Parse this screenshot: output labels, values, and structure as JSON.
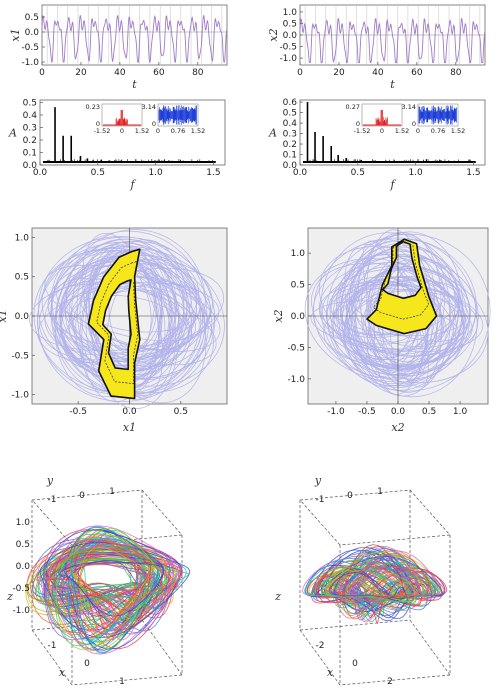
{
  "chart_data": [
    {
      "id": "ts1",
      "type": "line",
      "xlabel": "t",
      "ylabel": "x1",
      "xlim": [
        0,
        95
      ],
      "ylim": [
        -1.1,
        0.9
      ],
      "xticks": [
        "0",
        "20",
        "40",
        "60",
        "80"
      ],
      "yticks": [
        "-1.0",
        "-0.5",
        "0.0",
        "0.5"
      ],
      "series": [
        {
          "color": "#a07cc8",
          "oscillations": 15
        }
      ]
    },
    {
      "id": "ts2",
      "type": "line",
      "xlabel": "t",
      "ylabel": "x2",
      "xlim": [
        0,
        95
      ],
      "ylim": [
        -1.3,
        1.3
      ],
      "xticks": [
        "0",
        "20",
        "40",
        "60",
        "80"
      ],
      "yticks": [
        "-1.0",
        "-0.5",
        "0.0",
        "0.5",
        "1.0"
      ],
      "series": [
        {
          "color": "#a07cc8",
          "oscillations": 15
        }
      ]
    },
    {
      "id": "spec1",
      "type": "bar",
      "xlabel": "f",
      "ylabel": "A",
      "xlim": [
        0,
        1.6
      ],
      "ylim": [
        0,
        0.52
      ],
      "xticks": [
        "0.0",
        "0.5",
        "1.0",
        "1.5"
      ],
      "yticks": [
        "0.0",
        "0.1",
        "0.2",
        "0.3",
        "0.4",
        "0.5"
      ],
      "peaks": [
        [
          0.13,
          0.46
        ],
        [
          0.2,
          0.22
        ],
        [
          0.27,
          0.22
        ],
        [
          0.35,
          0.05
        ],
        [
          0.41,
          0.03
        ],
        [
          0.53,
          0.02
        ],
        [
          0.65,
          0.01
        ]
      ],
      "insets": [
        {
          "color": "#e02020",
          "ymax": "0.23",
          "ticks": [
            "-1.52",
            "0",
            "1.52"
          ]
        },
        {
          "color": "#1f3fd8",
          "ymax": "3.14",
          "ticks": [
            "0",
            "0.76",
            "1.52"
          ]
        }
      ]
    },
    {
      "id": "spec2",
      "type": "bar",
      "xlabel": "f",
      "ylabel": "A",
      "xlim": [
        0,
        1.6
      ],
      "ylim": [
        0,
        0.62
      ],
      "xticks": [
        "0.0",
        "0.5",
        "1.0",
        "1.5"
      ],
      "yticks": [
        "0.0",
        "0.1",
        "0.2",
        "0.3",
        "0.4",
        "0.5",
        "0.6"
      ],
      "peaks": [
        [
          0.065,
          0.6
        ],
        [
          0.13,
          0.3
        ],
        [
          0.2,
          0.26
        ],
        [
          0.27,
          0.16
        ],
        [
          0.33,
          0.07
        ],
        [
          0.4,
          0.04
        ],
        [
          0.53,
          0.02
        ]
      ],
      "insets": [
        {
          "color": "#e02020",
          "ymax": "0.27",
          "ticks": [
            "-1.52",
            "0",
            "1.52"
          ]
        },
        {
          "color": "#1f3fd8",
          "ymax": "3.14",
          "ticks": [
            "0",
            "0.76",
            "1.52"
          ]
        }
      ]
    },
    {
      "id": "phase1",
      "type": "scatter",
      "xlabel": "x1",
      "ylabel": "x1",
      "xlim": [
        -0.95,
        0.95
      ],
      "ylim": [
        -1.12,
        1.12
      ],
      "xticks": [
        "-0.5",
        "0.0",
        "0.5"
      ],
      "yticks": [
        "-1.0",
        "-0.5",
        "0.0",
        "0.5",
        "1.0"
      ],
      "cloud_color": "#b3b3ec",
      "attractor_color": "#f6e71c"
    },
    {
      "id": "phase2",
      "type": "scatter",
      "xlabel": "x2",
      "ylabel": "x2",
      "xlim": [
        -1.45,
        1.45
      ],
      "ylim": [
        -1.4,
        1.4
      ],
      "xticks": [
        "-1.0",
        "-0.5",
        "0.0",
        "0.5",
        "1.0"
      ],
      "yticks": [
        "-1.0",
        "-0.5",
        "0.0",
        "0.5",
        "1.0"
      ],
      "cloud_color": "#b3b3ec",
      "attractor_color": "#f6e71c"
    },
    {
      "id": "box1",
      "type": "line",
      "labels": [
        "x",
        "y",
        "z"
      ],
      "zticks": [
        "1.0",
        "0.5",
        "0.0",
        "-0.5",
        "-1.0"
      ],
      "xticks": [
        "-1",
        "0",
        "1"
      ],
      "yticks": [
        "-1",
        "0",
        "1"
      ]
    },
    {
      "id": "box2",
      "type": "line",
      "labels": [
        "x",
        "y",
        "z"
      ],
      "zticks": [],
      "xticks": [
        "-2",
        "0",
        "2"
      ],
      "yticks": [
        "-1",
        "0",
        "1"
      ]
    }
  ]
}
